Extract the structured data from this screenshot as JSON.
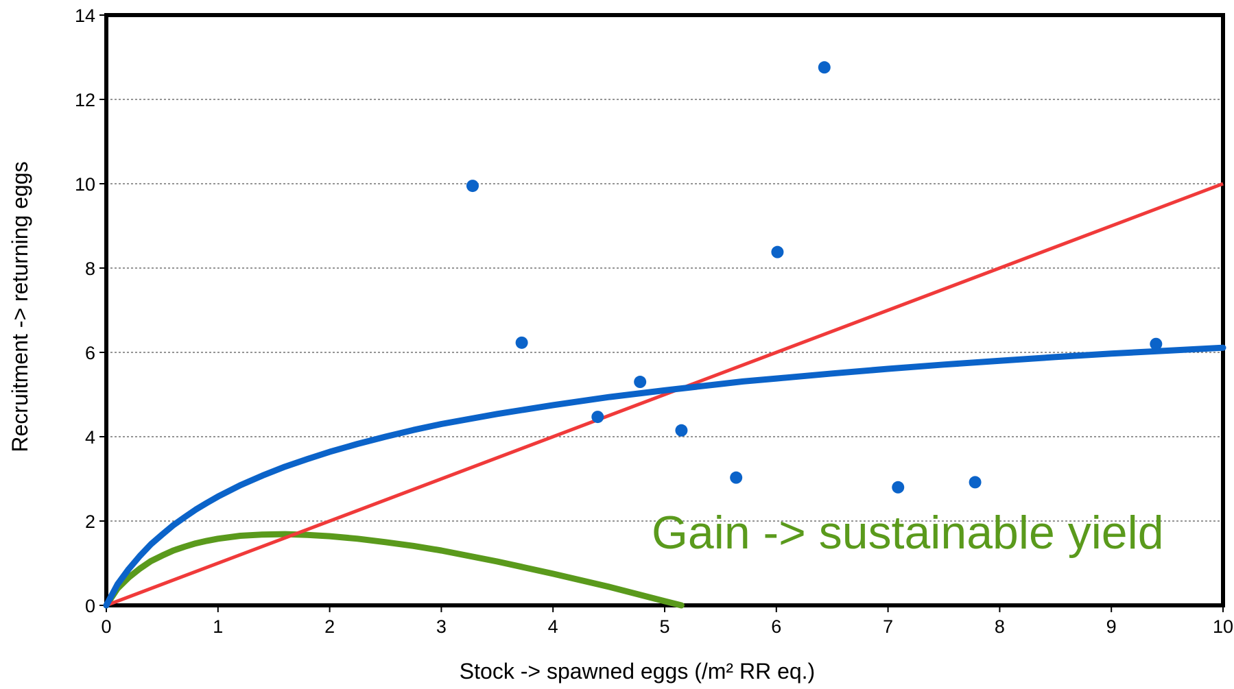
{
  "chart_data": {
    "type": "scatter",
    "title": "",
    "xlabel": "Stock -> spawned eggs  (/m² RR eq.)",
    "ylabel": "Recruitment -> returning eggs",
    "xlim": [
      0,
      10
    ],
    "ylim": [
      0,
      14
    ],
    "x_ticks": [
      "0",
      "1",
      "2",
      "3",
      "4",
      "5",
      "6",
      "7",
      "8",
      "9",
      "10"
    ],
    "y_ticks": [
      "0",
      "2",
      "4",
      "6",
      "8",
      "10",
      "12",
      "14"
    ],
    "grid": "horizontal dotted",
    "legend": "none",
    "colors": {
      "points": "#0b63c9",
      "recruitment_curve": "#0b63c9",
      "replacement_line": "#f03a3a",
      "gain_curve": "#5a9a1c"
    },
    "points": [
      {
        "x": 3.28,
        "y": 9.95
      },
      {
        "x": 3.72,
        "y": 6.23
      },
      {
        "x": 4.4,
        "y": 4.47
      },
      {
        "x": 4.78,
        "y": 5.3
      },
      {
        "x": 5.15,
        "y": 4.15
      },
      {
        "x": 5.64,
        "y": 3.03
      },
      {
        "x": 6.01,
        "y": 8.38
      },
      {
        "x": 6.43,
        "y": 12.76
      },
      {
        "x": 7.09,
        "y": 2.8
      },
      {
        "x": 7.78,
        "y": 2.92
      },
      {
        "x": 9.4,
        "y": 6.2
      }
    ],
    "recruitment_curve": [
      [
        0,
        0
      ],
      [
        0.1,
        0.5
      ],
      [
        0.2,
        0.86
      ],
      [
        0.3,
        1.17
      ],
      [
        0.4,
        1.45
      ],
      [
        0.5,
        1.68
      ],
      [
        0.6,
        1.9
      ],
      [
        0.7,
        2.09
      ],
      [
        0.8,
        2.27
      ],
      [
        0.9,
        2.43
      ],
      [
        1.0,
        2.58
      ],
      [
        1.2,
        2.85
      ],
      [
        1.4,
        3.08
      ],
      [
        1.6,
        3.29
      ],
      [
        1.8,
        3.47
      ],
      [
        2.0,
        3.64
      ],
      [
        2.25,
        3.83
      ],
      [
        2.5,
        4.0
      ],
      [
        2.75,
        4.16
      ],
      [
        3.0,
        4.3
      ],
      [
        3.5,
        4.54
      ],
      [
        4.0,
        4.75
      ],
      [
        4.5,
        4.94
      ],
      [
        5.0,
        5.1
      ],
      [
        5.5,
        5.25
      ],
      [
        5.7,
        5.31
      ],
      [
        6.0,
        5.38
      ],
      [
        6.5,
        5.5
      ],
      [
        7.0,
        5.61
      ],
      [
        7.5,
        5.71
      ],
      [
        8.0,
        5.8
      ],
      [
        8.5,
        5.89
      ],
      [
        9.0,
        5.97
      ],
      [
        9.5,
        6.04
      ],
      [
        10.0,
        6.11
      ]
    ],
    "replacement_line": [
      [
        0,
        0
      ],
      [
        10,
        10
      ]
    ],
    "gain_curve": [
      [
        0,
        0
      ],
      [
        0.1,
        0.4
      ],
      [
        0.2,
        0.66
      ],
      [
        0.3,
        0.87
      ],
      [
        0.4,
        1.05
      ],
      [
        0.5,
        1.18
      ],
      [
        0.6,
        1.3
      ],
      [
        0.7,
        1.39
      ],
      [
        0.8,
        1.47
      ],
      [
        0.9,
        1.53
      ],
      [
        1.0,
        1.58
      ],
      [
        1.2,
        1.65
      ],
      [
        1.4,
        1.68
      ],
      [
        1.6,
        1.69
      ],
      [
        1.8,
        1.67
      ],
      [
        2.0,
        1.64
      ],
      [
        2.25,
        1.58
      ],
      [
        2.5,
        1.5
      ],
      [
        2.75,
        1.41
      ],
      [
        3.0,
        1.3
      ],
      [
        3.5,
        1.04
      ],
      [
        4.0,
        0.75
      ],
      [
        4.5,
        0.44
      ],
      [
        5.0,
        0.1
      ],
      [
        5.15,
        0.0
      ]
    ],
    "annotation": "Gain -> sustainable yield"
  }
}
